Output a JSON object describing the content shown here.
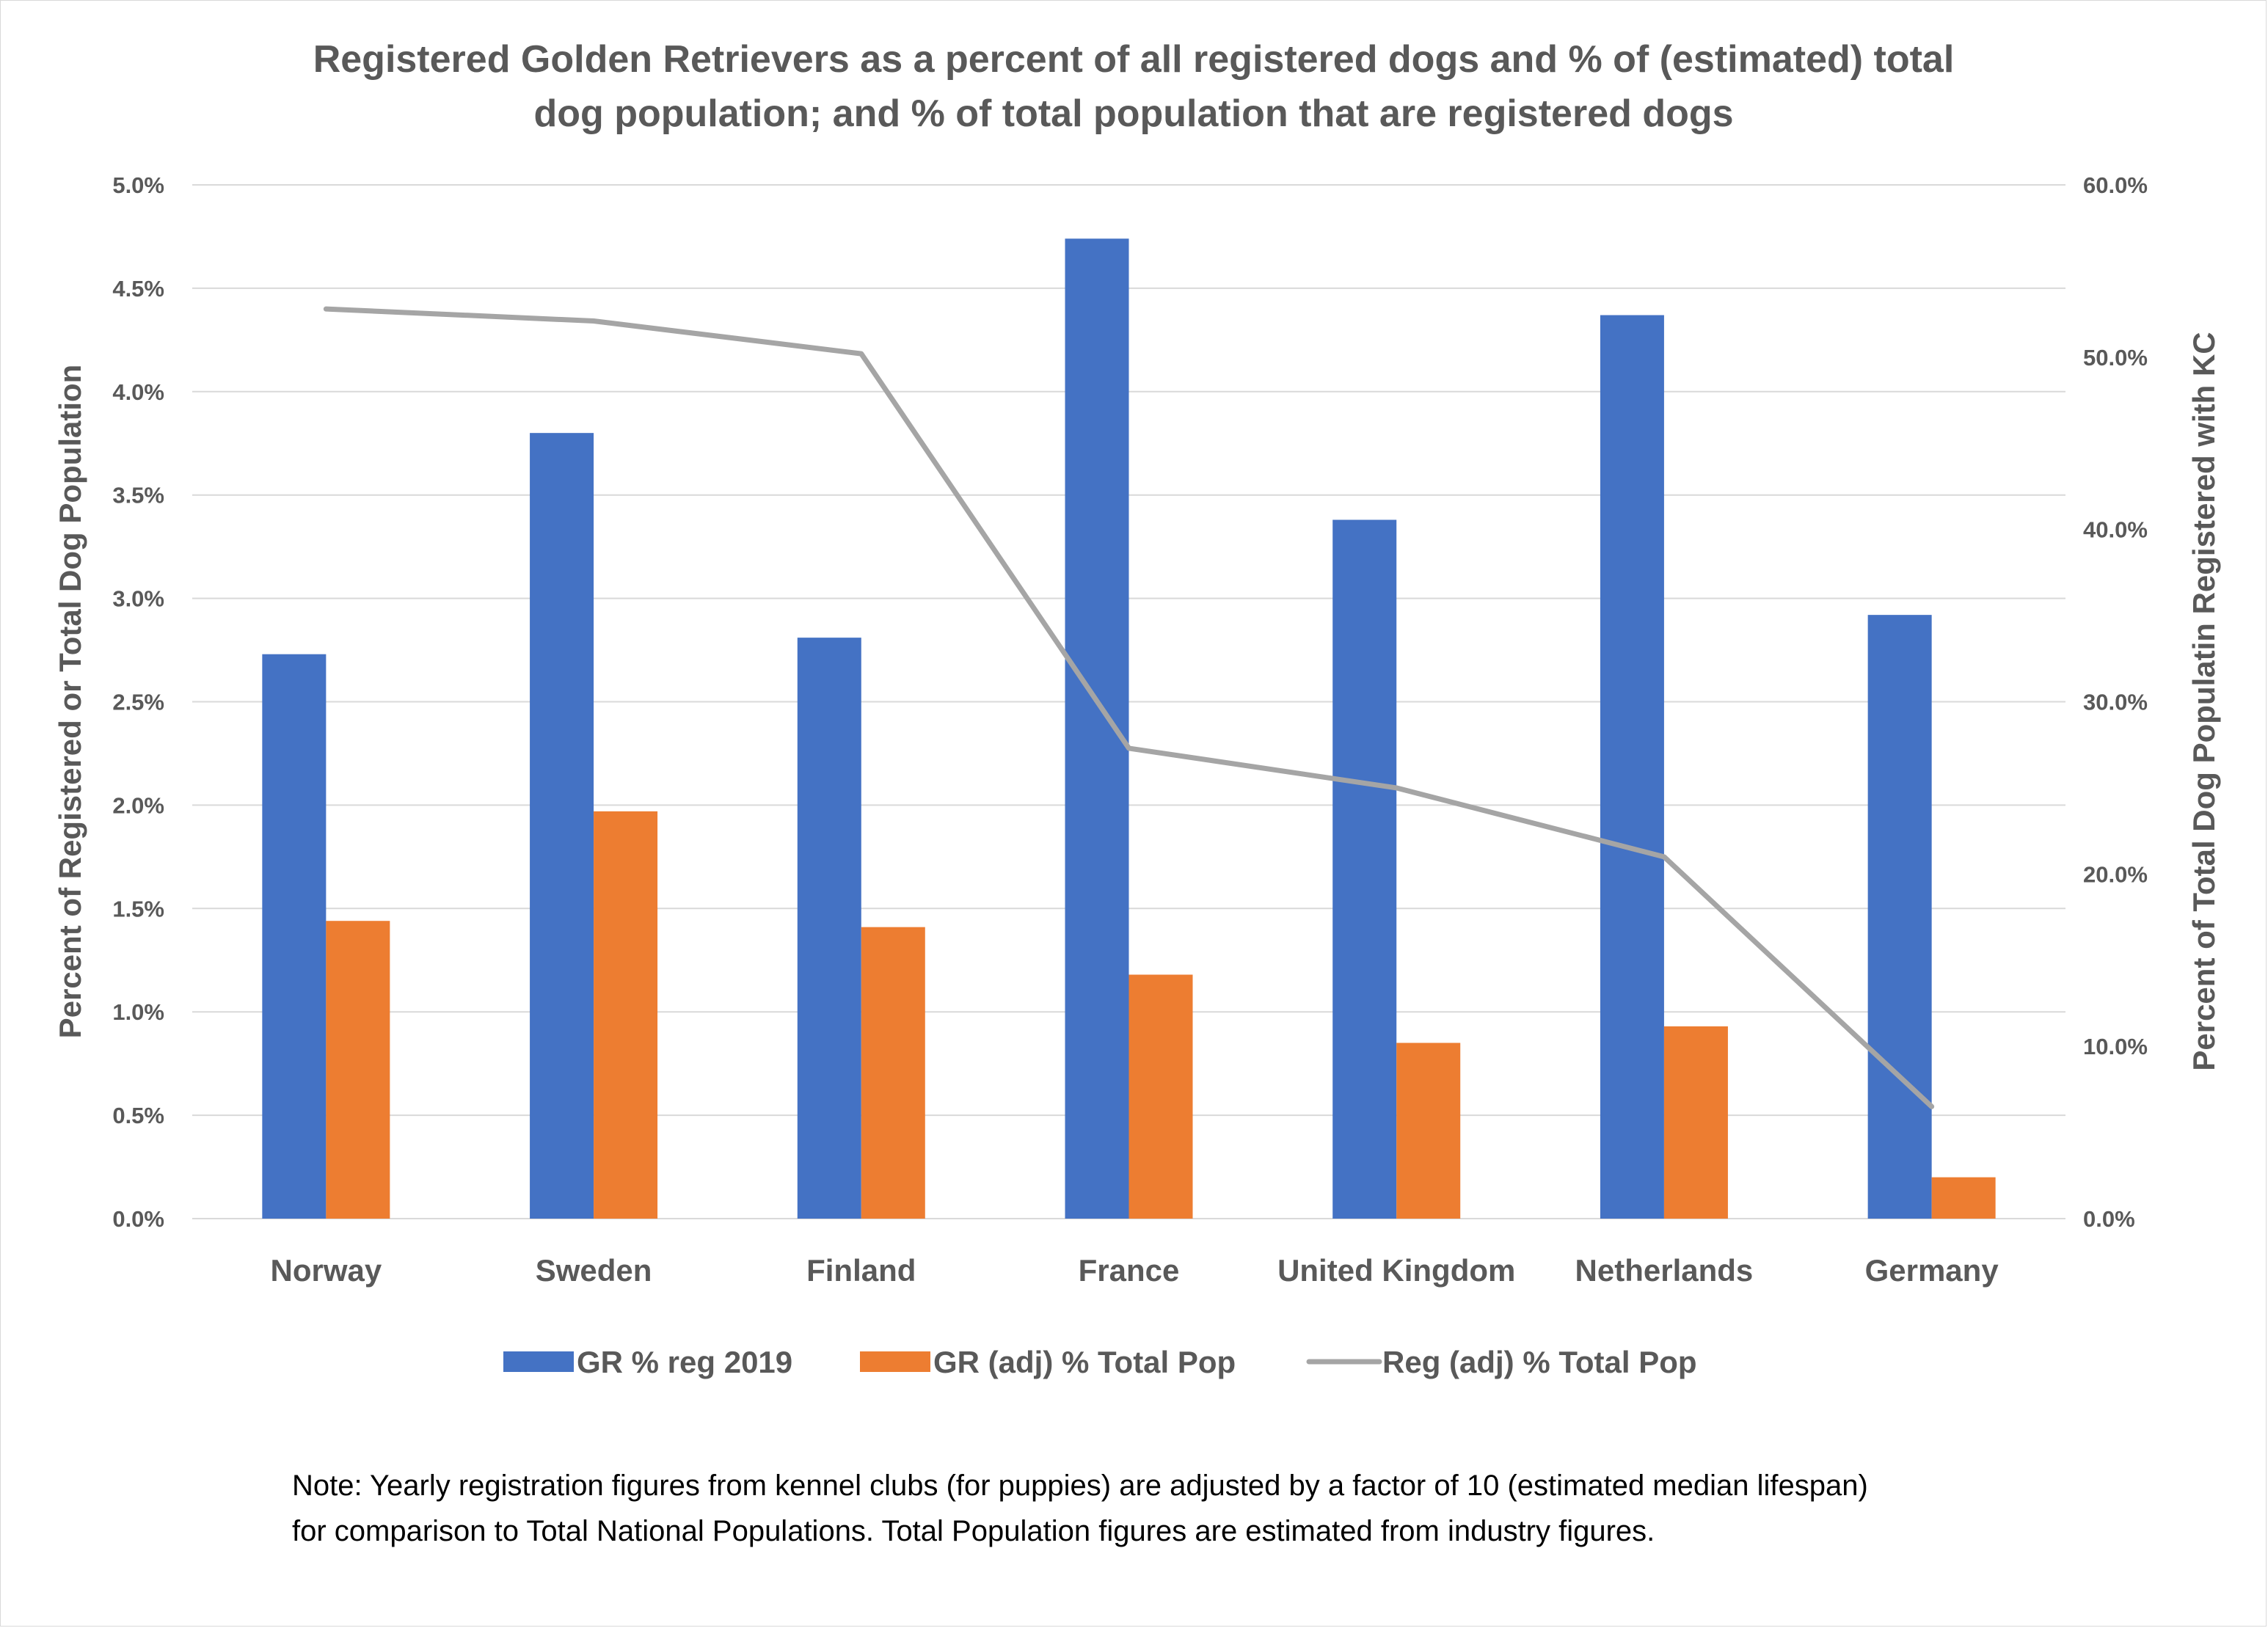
{
  "chart_data": {
    "type": "bar",
    "title_lines": [
      "Registered Golden Retrievers as a percent of all registered dogs and % of (estimated) total",
      "dog population; and % of total population that are registered dogs"
    ],
    "categories": [
      "Norway",
      "Sweden",
      "Finland",
      "France",
      "United Kingdom",
      "Netherlands",
      "Germany"
    ],
    "series": [
      {
        "name": "GR % reg 2019",
        "type": "bar",
        "axis": "left",
        "color": "#4472C4",
        "values": [
          2.73,
          3.8,
          2.81,
          4.74,
          3.38,
          4.37,
          2.92
        ]
      },
      {
        "name": "GR (adj) % Total Pop",
        "type": "bar",
        "axis": "left",
        "color": "#ED7D31",
        "values": [
          1.44,
          1.97,
          1.41,
          1.18,
          0.85,
          0.93,
          0.2
        ]
      },
      {
        "name": "Reg (adj) % Total Pop",
        "type": "line",
        "axis": "right",
        "color": "#A5A5A5",
        "values": [
          52.8,
          52.1,
          50.2,
          27.3,
          25.0,
          21.0,
          6.5
        ]
      }
    ],
    "y_left": {
      "label": "Percent of Registered or Total Dog Population",
      "ylim": [
        0,
        5.0
      ],
      "ticks": [
        0,
        0.5,
        1.0,
        1.5,
        2.0,
        2.5,
        3.0,
        3.5,
        4.0,
        4.5,
        5.0
      ],
      "tick_labels": [
        "0.0%",
        "0.5%",
        "1.0%",
        "1.5%",
        "2.0%",
        "2.5%",
        "3.0%",
        "3.5%",
        "4.0%",
        "4.5%",
        "5.0%"
      ]
    },
    "y_right": {
      "label": "Percent of Total Dog Populatin Registered with KC",
      "ylim": [
        0,
        60.0
      ],
      "ticks": [
        0,
        10,
        20,
        30,
        40,
        50,
        60
      ],
      "tick_labels": [
        "0.0%",
        "10.0%",
        "20.0%",
        "30.0%",
        "40.0%",
        "50.0%",
        "60.0%"
      ]
    },
    "grid": true,
    "legend_position": "bottom"
  },
  "note_lines": [
    "Note: Yearly registration figures from kennel clubs (for puppies) are adjusted by a factor of 10 (estimated median lifespan)",
    "for comparison to Total National Populations. Total Population figures are estimated from industry figures."
  ]
}
